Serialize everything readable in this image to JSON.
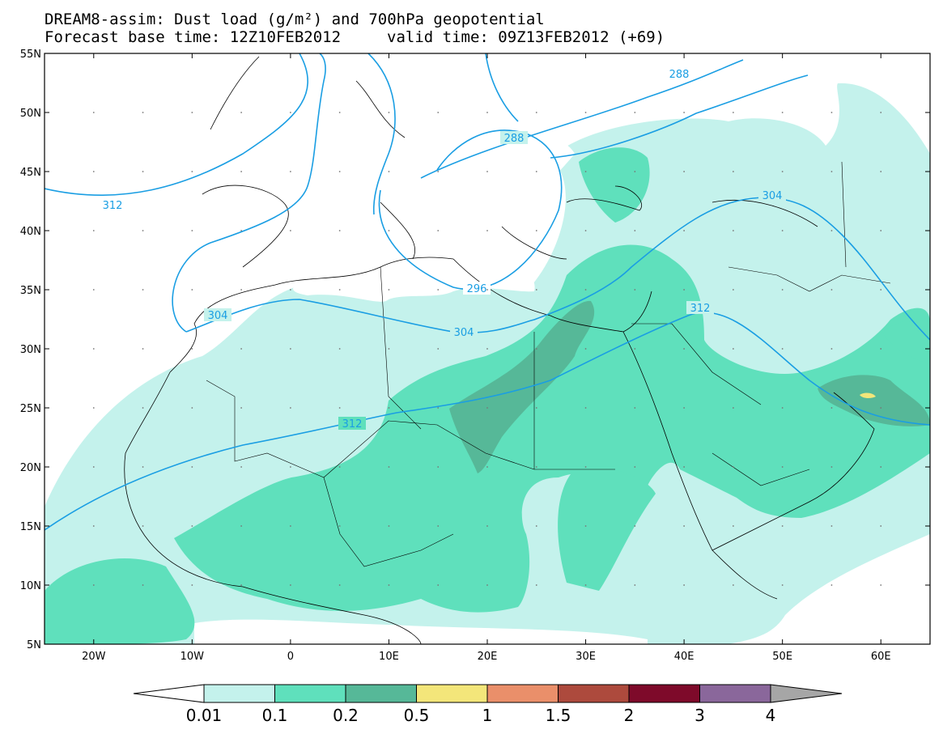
{
  "title": {
    "line1": "DREAM8-assim: Dust load (g/m²) and 700hPa geopotential",
    "line2_base": "Forecast base time: 12Z10FEB2012",
    "line2_valid": "valid time: 09Z13FEB2012 (+69)"
  },
  "map": {
    "lat_labels": [
      "55N",
      "50N",
      "45N",
      "40N",
      "35N",
      "30N",
      "25N",
      "20N",
      "15N",
      "10N",
      "5N"
    ],
    "lon_labels": [
      "20W",
      "10W",
      "0",
      "10E",
      "20E",
      "30E",
      "40E",
      "50E",
      "60E"
    ],
    "lat_range": [
      5,
      55
    ],
    "lon_range": [
      -25,
      65
    ],
    "contour_labels": [
      "288",
      "288",
      "312",
      "304",
      "296",
      "304",
      "304",
      "312",
      "312"
    ]
  },
  "legend": {
    "boundaries": [
      "0.01",
      "0.1",
      "0.2",
      "0.5",
      "1",
      "1.5",
      "2",
      "3",
      "4"
    ],
    "colors": [
      "#c4f2ec",
      "#5fe0bc",
      "#56b898",
      "#f3e67a",
      "#ea8f6a",
      "#ad4a3d",
      "#7e0a2a",
      "#8a679b",
      "#a6a6a6"
    ]
  }
}
